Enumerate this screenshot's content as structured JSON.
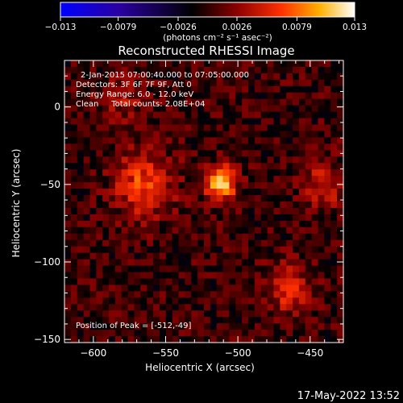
{
  "chart_data": {
    "type": "heatmap",
    "title": "Reconstructed RHESSI Image",
    "xlabel": "Heliocentric X (arcsec)",
    "ylabel": "Heliocentric Y (arcsec)",
    "xlim": [
      -620,
      -427
    ],
    "ylim": [
      -152,
      30
    ],
    "x_ticks": [
      -600,
      -550,
      -500,
      -450
    ],
    "y_ticks": [
      0,
      -50,
      -100,
      -150
    ],
    "x_tick_labels": [
      "−600",
      "−550",
      "−500",
      "−450"
    ],
    "y_tick_labels": [
      "0",
      "−50",
      "−100",
      "−150"
    ],
    "colorbar": {
      "range": [
        -0.013,
        0.013
      ],
      "ticks": [
        -0.013,
        -0.0079,
        -0.0026,
        0.0026,
        0.0079,
        0.013
      ],
      "tick_labels": [
        "−0.013",
        "−0.0079",
        "−0.0026",
        "0.0026",
        "0.0079",
        "0.013"
      ],
      "units": "(photons cm⁻² s⁻¹ asec⁻²)",
      "colors": [
        "#0000ff",
        "#2a00a0",
        "#000000",
        "#8b0000",
        "#ff3000",
        "#ffb000",
        "#ffffff"
      ]
    },
    "annotations": [
      "2-Jan-2015 07:00:40.000 to 07:05:00.000",
      "Detectors: 3F 6F 7F 9F, Att 0",
      "Energy Range: 6.0 - 12.0 keV",
      "Clean     Total counts: 2.08E+04"
    ],
    "peak_label": "Position of Peak = [-512,-49]",
    "peak": {
      "x": -512,
      "y": -49
    },
    "sources": [
      {
        "x": -512,
        "y": -49,
        "amplitude": 0.013
      },
      {
        "x": -565,
        "y": -50,
        "amplitude": 0.0065
      },
      {
        "x": -465,
        "y": -117,
        "amplitude": 0.0055
      },
      {
        "x": -440,
        "y": -51,
        "amplitude": 0.005
      },
      {
        "x": -580,
        "y": 5,
        "amplitude": 0.003
      }
    ]
  },
  "footer": {
    "timestamp": "17-May-2022 13:52"
  }
}
